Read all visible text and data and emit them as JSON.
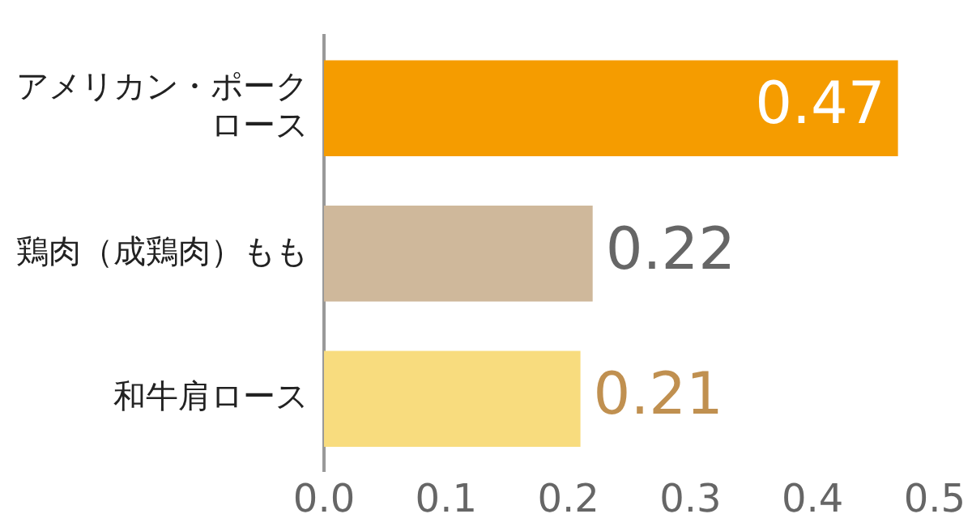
{
  "chart_data": {
    "type": "bar",
    "orientation": "horizontal",
    "categories": [
      "アメリカン・ポークロース",
      "鶏肉（成鶏肉）もも",
      "和牛肩ロース"
    ],
    "values": [
      0.47,
      0.22,
      0.21
    ],
    "colors": [
      "#f59c00",
      "#cfb89b",
      "#f8dc7e"
    ],
    "xlim": [
      0,
      0.5
    ],
    "xticks": [
      {
        "value": 0,
        "label": "0.0"
      },
      {
        "value": 0.1,
        "label": "0.1"
      },
      {
        "value": 0.2,
        "label": "0.2"
      },
      {
        "value": 0.3,
        "label": "0.3"
      },
      {
        "value": 0.4,
        "label": "0.4"
      },
      {
        "value": 0.5,
        "label": "0.5"
      }
    ],
    "data_labels": true,
    "grid": false,
    "legend": false
  }
}
